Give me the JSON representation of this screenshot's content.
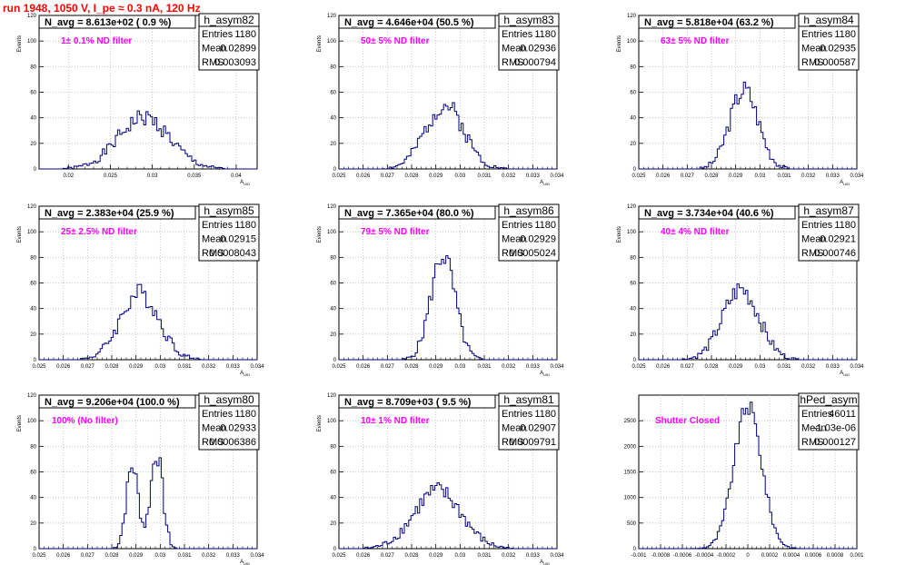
{
  "header": {
    "text": "run 1948,  1050 V, I_pe ≈ 0.3 nA, 120 Hz",
    "color": "#ff0000"
  },
  "colors": {
    "histogram": "#000080",
    "filter_label": "#ff00ff",
    "grid": "#bbbbbb"
  },
  "chart_data": [
    {
      "type": "histogram",
      "name": "h_asym82",
      "navg": "N_avg = 8.613e+02 ( 0.9 %)",
      "filter": "1± 0.1% ND filter",
      "stats": {
        "Entries": "1180",
        "Mean": "0.02899",
        "RMS": "0.003093"
      },
      "xlabel": "A_UID",
      "ylabel": "Events",
      "xlim": [
        0.0165,
        0.0425
      ],
      "ylim": [
        0,
        120
      ],
      "xticks": [
        "0.02",
        "0.025",
        "0.03",
        "0.035",
        "0.04"
      ],
      "yticks": [
        "0",
        "20",
        "40",
        "60",
        "80",
        "100",
        "120"
      ],
      "gauss": {
        "mu": 0.02899,
        "sigma": 0.0031,
        "amp": 40,
        "seed": 1
      }
    },
    {
      "type": "histogram",
      "name": "h_asym83",
      "navg": "N_avg = 4.646e+04 (50.5 %)",
      "filter": "50± 5% ND filter",
      "stats": {
        "Entries": "1180",
        "Mean": "0.02936",
        "RMS": "0.000794"
      },
      "xlabel": "A_UID",
      "ylabel": "Events",
      "xlim": [
        0.025,
        0.034
      ],
      "ylim": [
        0,
        120
      ],
      "xticks": [
        "0.025",
        "0.026",
        "0.027",
        "0.028",
        "0.029",
        "0.03",
        "0.031",
        "0.032",
        "0.033",
        "0.034"
      ],
      "yticks": [
        "0",
        "20",
        "40",
        "60",
        "80",
        "100",
        "120"
      ],
      "gauss": {
        "mu": 0.02936,
        "sigma": 0.0008,
        "amp": 50,
        "seed": 2
      }
    },
    {
      "type": "histogram",
      "name": "h_asym84",
      "navg": "N_avg = 5.818e+04 (63.2 %)",
      "filter": "63± 5% ND filter",
      "stats": {
        "Entries": "1180",
        "Mean": "0.02935",
        "RMS": "0.000587"
      },
      "xlabel": "A_UID",
      "ylabel": "Events",
      "xlim": [
        0.025,
        0.034
      ],
      "ylim": [
        0,
        120
      ],
      "xticks": [
        "0.025",
        "0.026",
        "0.027",
        "0.028",
        "0.029",
        "0.03",
        "0.031",
        "0.032",
        "0.033",
        "0.034"
      ],
      "yticks": [
        "0",
        "20",
        "40",
        "60",
        "80",
        "100",
        "120"
      ],
      "gauss": {
        "mu": 0.02935,
        "sigma": 0.00059,
        "amp": 62,
        "seed": 3
      }
    },
    {
      "type": "histogram",
      "name": "h_asym85",
      "navg": "N_avg = 2.383e+04 (25.9 %)",
      "filter": "25± 2.5% ND filter",
      "stats": {
        "Entries": "1180",
        "Mean": "0.02915",
        "RMS": "0.0008043"
      },
      "xlabel": "A_UID",
      "ylabel": "Events",
      "xlim": [
        0.025,
        0.034
      ],
      "ylim": [
        0,
        120
      ],
      "xticks": [
        "0.025",
        "0.026",
        "0.027",
        "0.028",
        "0.029",
        "0.03",
        "0.031",
        "0.032",
        "0.033",
        "0.034"
      ],
      "yticks": [
        "0",
        "20",
        "40",
        "60",
        "80",
        "100",
        "120"
      ],
      "gauss": {
        "mu": 0.02915,
        "sigma": 0.0008,
        "amp": 52,
        "seed": 4
      }
    },
    {
      "type": "histogram",
      "name": "h_asym86",
      "navg": "N_avg = 7.365e+04 (80.0 %)",
      "filter": "79± 5% ND filter",
      "stats": {
        "Entries": "1180",
        "Mean": "0.02929",
        "RMS": "0.0005024"
      },
      "xlabel": "A_UID",
      "ylabel": "Events",
      "xlim": [
        0.025,
        0.034
      ],
      "ylim": [
        0,
        120
      ],
      "xticks": [
        "0.025",
        "0.026",
        "0.027",
        "0.028",
        "0.029",
        "0.03",
        "0.031",
        "0.032",
        "0.033",
        "0.034"
      ],
      "yticks": [
        "0",
        "20",
        "40",
        "60",
        "80",
        "100",
        "120"
      ],
      "gauss": {
        "mu": 0.02929,
        "sigma": 0.0005,
        "amp": 82,
        "seed": 5
      }
    },
    {
      "type": "histogram",
      "name": "h_asym87",
      "navg": "N_avg = 3.734e+04 (40.6 %)",
      "filter": "40± 4% ND filter",
      "stats": {
        "Entries": "1180",
        "Mean": "0.02921",
        "RMS": "0.000746"
      },
      "xlabel": "A_UID",
      "ylabel": "Events",
      "xlim": [
        0.025,
        0.034
      ],
      "ylim": [
        0,
        120
      ],
      "xticks": [
        "0.025",
        "0.026",
        "0.027",
        "0.028",
        "0.029",
        "0.03",
        "0.031",
        "0.032",
        "0.033",
        "0.034"
      ],
      "yticks": [
        "0",
        "20",
        "40",
        "60",
        "80",
        "100",
        "120"
      ],
      "gauss": {
        "mu": 0.02921,
        "sigma": 0.00075,
        "amp": 55,
        "seed": 6
      }
    },
    {
      "type": "histogram",
      "name": "h_asym80",
      "navg": "N_avg = 9.206e+04 (100.0 %)",
      "filter": "100% (No filter)",
      "stats": {
        "Entries": "1180",
        "Mean": "0.02933",
        "RMS": "0.0006386"
      },
      "xlabel": "A_UID",
      "ylabel": "Events",
      "xlim": [
        0.025,
        0.034
      ],
      "ylim": [
        0,
        120
      ],
      "xticks": [
        "0.025",
        "0.026",
        "0.027",
        "0.028",
        "0.029",
        "0.03",
        "0.031",
        "0.032",
        "0.033",
        "0.034"
      ],
      "yticks": [
        "0",
        "20",
        "40",
        "60",
        "80",
        "100",
        "120"
      ],
      "bimodal": {
        "mu1": 0.02885,
        "mu2": 0.02985,
        "sigma": 0.00025,
        "amp1": 65,
        "amp2": 75,
        "seed": 7
      }
    },
    {
      "type": "histogram",
      "name": "h_asym81",
      "navg": "N_avg = 8.709e+03 ( 9.5 %)",
      "filter": "10± 1% ND filter",
      "stats": {
        "Entries": "1180",
        "Mean": "0.02907",
        "RMS": "0.0009791"
      },
      "xlabel": "A_UID",
      "ylabel": "Events",
      "xlim": [
        0.025,
        0.034
      ],
      "ylim": [
        0,
        120
      ],
      "xticks": [
        "0.025",
        "0.026",
        "0.027",
        "0.028",
        "0.029",
        "0.03",
        "0.031",
        "0.032",
        "0.033",
        "0.034"
      ],
      "yticks": [
        "0",
        "20",
        "40",
        "60",
        "80",
        "100",
        "120"
      ],
      "gauss": {
        "mu": 0.02907,
        "sigma": 0.00098,
        "amp": 45,
        "seed": 8
      }
    },
    {
      "type": "histogram",
      "name": "hPed_asym",
      "navg": "",
      "filter": "Shutter Closed",
      "stats": {
        "Entries": "46011",
        "Mean": "-1.03e-06",
        "RMS": "0.000127"
      },
      "xlabel": "",
      "ylabel": "",
      "xlim": [
        -0.001,
        0.001
      ],
      "ylim": [
        0,
        3000
      ],
      "xticks": [
        "-0.001",
        "-0.0008",
        "-0.0006",
        "-0.0004",
        "-0.0002",
        "0",
        "0.0002",
        "0.0004",
        "0.0006",
        "0.0008",
        "0.001"
      ],
      "yticks": [
        "0",
        "500",
        "1000",
        "1500",
        "2000",
        "2500"
      ],
      "gauss": {
        "mu": 0.0,
        "sigma": 0.000127,
        "amp": 2780,
        "seed": 9
      }
    }
  ]
}
